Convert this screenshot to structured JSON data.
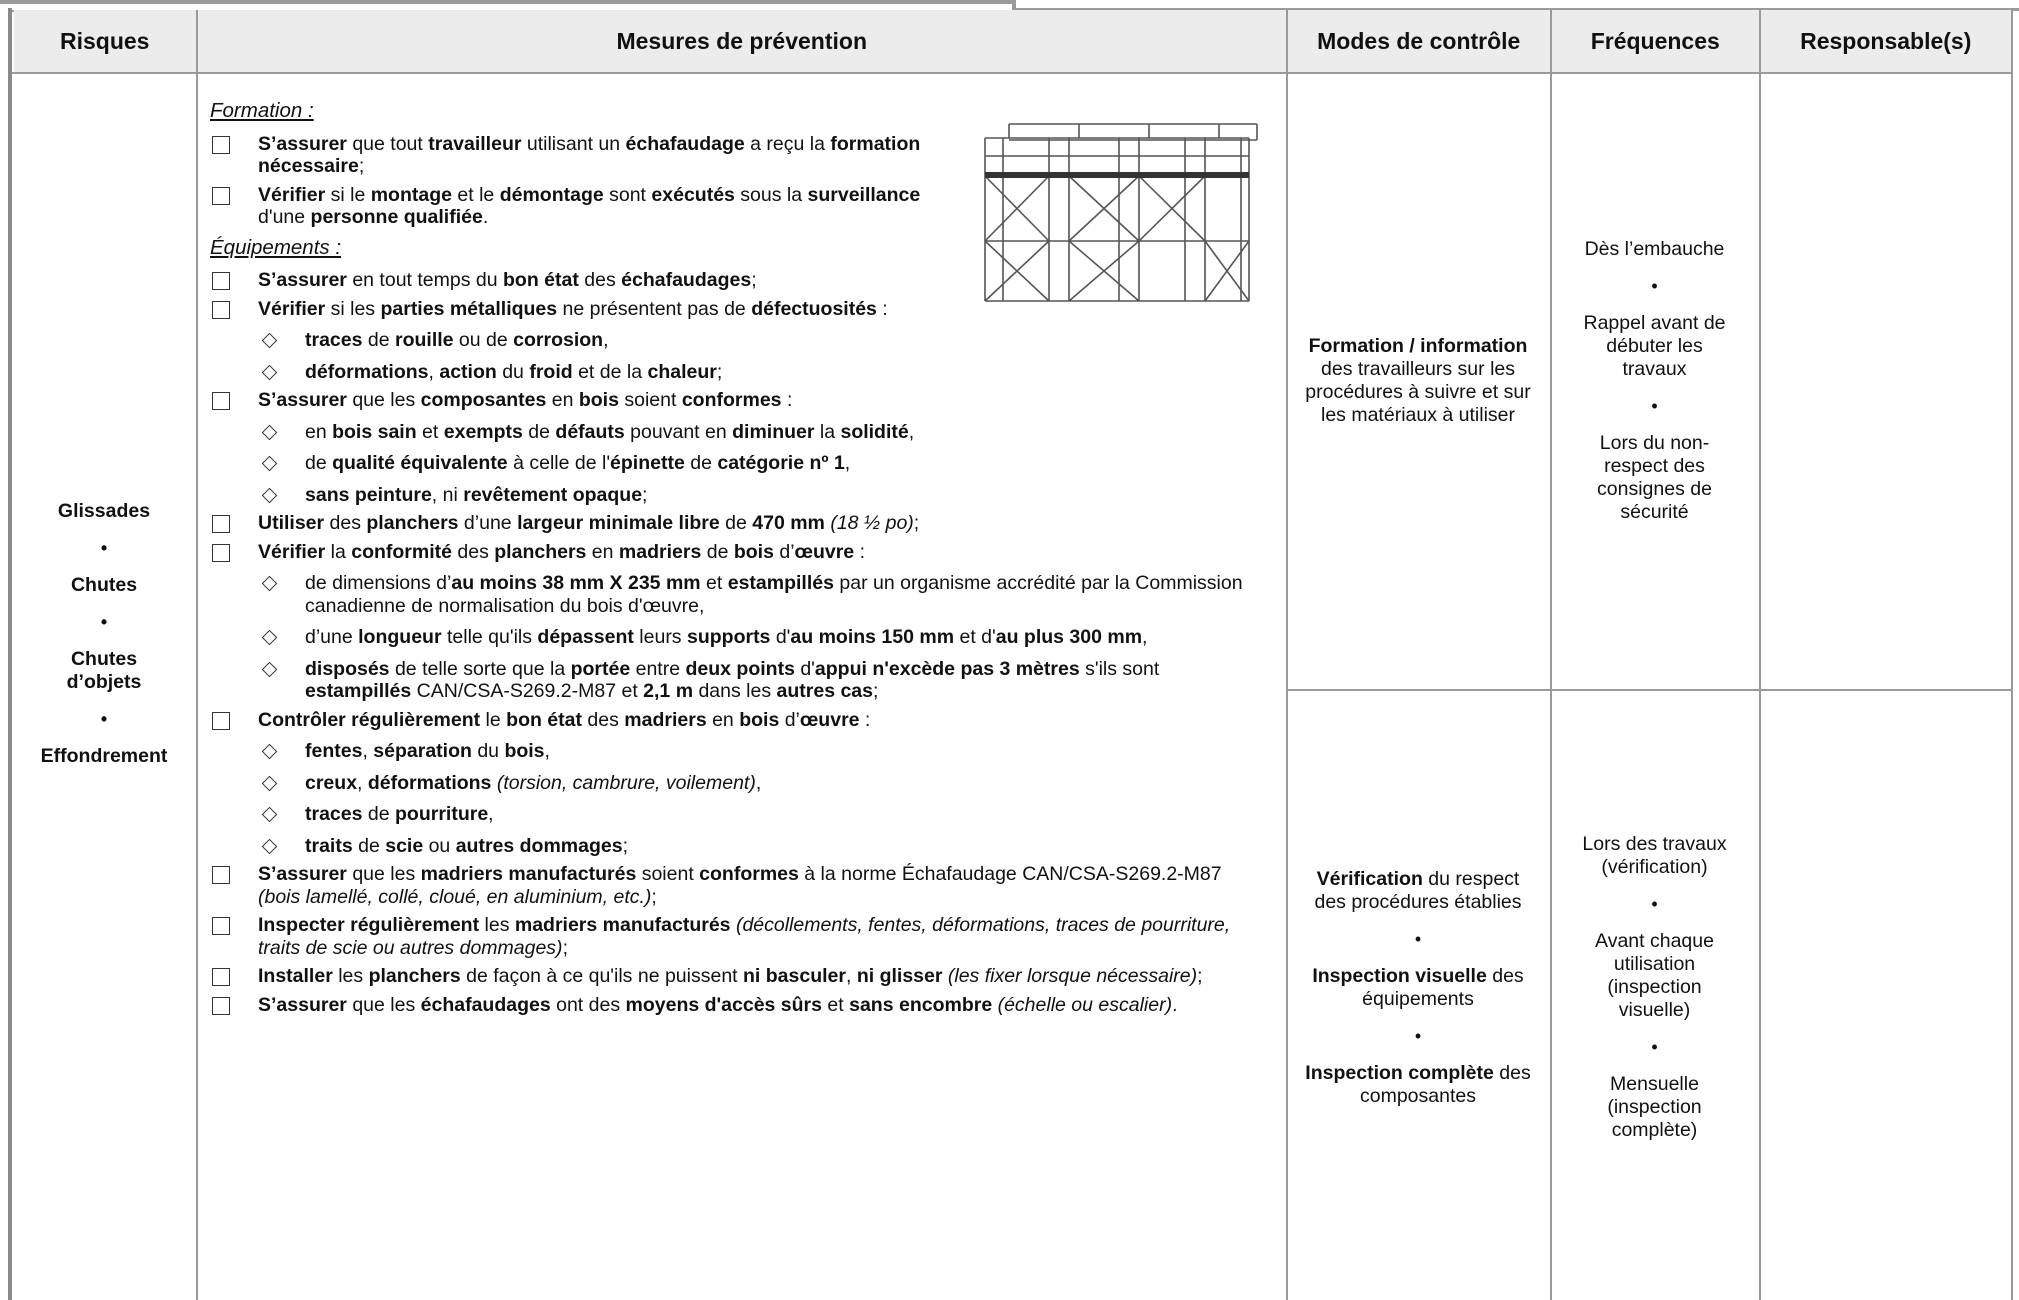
{
  "header": [
    "Risques",
    "Mesures de prévention",
    "Modes de contrôle",
    "Fréquences",
    "Responsable(s)"
  ],
  "risques": [
    "Glissades",
    "Chutes",
    "Chutes d’objets",
    "Effondrement"
  ],
  "mesures": {
    "sections": [
      {
        "heading": "Formation :",
        "items": [
          {
            "runs": [
              {
                "b": "S’assurer"
              },
              {
                "t": " que tout "
              },
              {
                "b": "travailleur"
              },
              {
                "t": " utilisant un "
              },
              {
                "b": "échafaudage"
              },
              {
                "t": " a reçu la "
              },
              {
                "b": "formation nécessaire"
              },
              {
                "t": ";"
              }
            ]
          },
          {
            "runs": [
              {
                "b": "Vérifier"
              },
              {
                "t": " si le "
              },
              {
                "b": "montage"
              },
              {
                "t": " et le "
              },
              {
                "b": "démontage"
              },
              {
                "t": " sont "
              },
              {
                "b": "exécutés"
              },
              {
                "t": " sous la "
              },
              {
                "b": "surveillance"
              },
              {
                "t": " d'une "
              },
              {
                "b": "personne qualifiée"
              },
              {
                "t": "."
              }
            ]
          }
        ]
      },
      {
        "heading": "Équipements :",
        "items": [
          {
            "runs": [
              {
                "b": "S’assurer"
              },
              {
                "t": " en tout temps du "
              },
              {
                "b": "bon état"
              },
              {
                "t": " des "
              },
              {
                "b": "échafaudages"
              },
              {
                "t": ";"
              }
            ]
          },
          {
            "runs": [
              {
                "b": "Vérifier"
              },
              {
                "t": " si les "
              },
              {
                "b": "parties métalliques"
              },
              {
                "t": " ne présentent pas de "
              },
              {
                "b": "défectuosités"
              },
              {
                "t": " :"
              }
            ],
            "sub": [
              [
                {
                  "b": "traces"
                },
                {
                  "t": " de "
                },
                {
                  "b": "rouille"
                },
                {
                  "t": " ou de "
                },
                {
                  "b": "corrosion"
                },
                {
                  "t": ","
                }
              ],
              [
                {
                  "b": "déformations"
                },
                {
                  "t": ", "
                },
                {
                  "b": "action"
                },
                {
                  "t": " du "
                },
                {
                  "b": "froid"
                },
                {
                  "t": " et de la "
                },
                {
                  "b": "chaleur"
                },
                {
                  "t": ";"
                }
              ]
            ]
          },
          {
            "runs": [
              {
                "b": "S’assurer"
              },
              {
                "t": " que les "
              },
              {
                "b": "composantes"
              },
              {
                "t": " en "
              },
              {
                "b": "bois"
              },
              {
                "t": " soient "
              },
              {
                "b": "conformes"
              },
              {
                "t": " :"
              }
            ],
            "sub": [
              [
                {
                  "t": "en "
                },
                {
                  "b": "bois sain"
                },
                {
                  "t": " et "
                },
                {
                  "b": "exempts"
                },
                {
                  "t": " de "
                },
                {
                  "b": "défauts"
                },
                {
                  "t": " pouvant en "
                },
                {
                  "b": "diminuer"
                },
                {
                  "t": " la "
                },
                {
                  "b": "solidité"
                },
                {
                  "t": ","
                }
              ],
              [
                {
                  "t": "de "
                },
                {
                  "b": "qualité équivalente"
                },
                {
                  "t": " à celle de l'"
                },
                {
                  "b": "épinette"
                },
                {
                  "t": " de "
                },
                {
                  "b": "catégorie nº 1"
                },
                {
                  "t": ","
                }
              ],
              [
                {
                  "b": "sans peinture"
                },
                {
                  "t": ", ni "
                },
                {
                  "b": "revêtement opaque"
                },
                {
                  "t": ";"
                }
              ]
            ]
          },
          {
            "runs": [
              {
                "b": "Utiliser"
              },
              {
                "t": " des "
              },
              {
                "b": "planchers"
              },
              {
                "t": " d’une "
              },
              {
                "b": "largeur minimale libre"
              },
              {
                "t": " de "
              },
              {
                "b": "470 mm"
              },
              {
                "i": " (18 ½ po)"
              },
              {
                "t": ";"
              }
            ]
          },
          {
            "runs": [
              {
                "b": "Vérifier"
              },
              {
                "t": " la "
              },
              {
                "b": "conformité"
              },
              {
                "t": " des "
              },
              {
                "b": "planchers"
              },
              {
                "t": " en "
              },
              {
                "b": "madriers"
              },
              {
                "t": " de "
              },
              {
                "b": "bois"
              },
              {
                "t": " d’"
              },
              {
                "b": "œuvre"
              },
              {
                "t": " :"
              }
            ],
            "sub": [
              [
                {
                  "t": "de dimensions d’"
                },
                {
                  "b": "au moins 38 mm X 235 mm"
                },
                {
                  "t": " et "
                },
                {
                  "b": "estampillés"
                },
                {
                  "t": " par un organisme accrédité par la Commission canadienne de normalisation du bois d'œuvre,"
                }
              ],
              [
                {
                  "t": "d’une "
                },
                {
                  "b": "longueur"
                },
                {
                  "t": " telle qu'ils "
                },
                {
                  "b": "dépassent"
                },
                {
                  "t": " leurs "
                },
                {
                  "b": "supports"
                },
                {
                  "t": " d'"
                },
                {
                  "b": "au moins 150 mm"
                },
                {
                  "t": " et d'"
                },
                {
                  "b": "au plus 300 mm"
                },
                {
                  "t": ","
                }
              ],
              [
                {
                  "b": "disposés"
                },
                {
                  "t": " de telle sorte que la "
                },
                {
                  "b": "portée"
                },
                {
                  "t": " entre "
                },
                {
                  "b": "deux points"
                },
                {
                  "t": " d'"
                },
                {
                  "b": "appui n'excède pas 3 mètres"
                },
                {
                  "t": " s'ils sont "
                },
                {
                  "b": "estampillés"
                },
                {
                  "t": " CAN/CSA-S269.2-M87 et "
                },
                {
                  "b": "2,1 m"
                },
                {
                  "t": " dans les "
                },
                {
                  "b": "autres cas"
                },
                {
                  "t": ";"
                }
              ]
            ]
          },
          {
            "runs": [
              {
                "b": "Contrôler régulièrement"
              },
              {
                "t": " le "
              },
              {
                "b": "bon état"
              },
              {
                "t": " des "
              },
              {
                "b": "madriers"
              },
              {
                "t": " en "
              },
              {
                "b": "bois"
              },
              {
                "t": " d’"
              },
              {
                "b": "œuvre"
              },
              {
                "t": " :"
              }
            ],
            "sub": [
              [
                {
                  "b": "fentes"
                },
                {
                  "t": ", "
                },
                {
                  "b": "séparation"
                },
                {
                  "t": " du "
                },
                {
                  "b": "bois"
                },
                {
                  "t": ","
                }
              ],
              [
                {
                  "b": "creux"
                },
                {
                  "t": ", "
                },
                {
                  "b": "déformations"
                },
                {
                  "i": " (torsion, cambrure, voilement)"
                },
                {
                  "t": ","
                }
              ],
              [
                {
                  "b": "traces"
                },
                {
                  "t": " de "
                },
                {
                  "b": "pourriture"
                },
                {
                  "t": ","
                }
              ],
              [
                {
                  "b": "traits"
                },
                {
                  "t": " de "
                },
                {
                  "b": "scie"
                },
                {
                  "t": " ou "
                },
                {
                  "b": "autres dommages"
                },
                {
                  "t": ";"
                }
              ]
            ]
          },
          {
            "runs": [
              {
                "b": "S’assurer"
              },
              {
                "t": " que les "
              },
              {
                "b": "madriers manufacturés"
              },
              {
                "t": " soient "
              },
              {
                "b": "conformes"
              },
              {
                "t": " à la norme Échafaudage CAN/CSA-S269.2-M87"
              },
              {
                "i": " (bois lamellé, collé, cloué, en aluminium, etc.)"
              },
              {
                "t": ";"
              }
            ]
          },
          {
            "runs": [
              {
                "b": "Inspecter régulièrement"
              },
              {
                "t": " les "
              },
              {
                "b": "madriers manufacturés"
              },
              {
                "i": " (décollements, fentes, déformations, traces de pourriture, traits de scie ou autres dommages)"
              },
              {
                "t": ";"
              }
            ]
          },
          {
            "runs": [
              {
                "b": "Installer"
              },
              {
                "t": " les "
              },
              {
                "b": "planchers"
              },
              {
                "t": " de façon à ce qu'ils ne puissent "
              },
              {
                "b": "ni basculer"
              },
              {
                "t": ", "
              },
              {
                "b": "ni glisser"
              },
              {
                "i": " (les fixer lorsque nécessaire)"
              },
              {
                "t": ";"
              }
            ]
          },
          {
            "runs": [
              {
                "b": "S’assurer"
              },
              {
                "t": " que les "
              },
              {
                "b": "échafaudages"
              },
              {
                "t": " ont des "
              },
              {
                "b": "moyens d'accès sûrs"
              },
              {
                "t": " et "
              },
              {
                "b": "sans encombre"
              },
              {
                "i": " (échelle ou escalier)"
              },
              {
                "t": "."
              }
            ]
          }
        ]
      }
    ]
  },
  "controle": [
    [
      [
        {
          "b": "Formation / information"
        },
        {
          "t": " des travailleurs sur les procédures à suivre et sur les matériaux à utiliser"
        }
      ]
    ],
    [
      [
        {
          "b": "Vérification"
        },
        {
          "t": " du respect des procédures établies"
        }
      ],
      [
        {
          "b": "Inspection visuelle"
        },
        {
          "t": " des équipements"
        }
      ],
      [
        {
          "b": "Inspection complète"
        },
        {
          "t": " des composantes"
        }
      ]
    ]
  ],
  "frequences": [
    [
      "Dès l’embauche",
      "Rappel avant de débuter les travaux",
      "Lors du non-respect des consignes de sécurité"
    ],
    [
      "Lors des travaux (vérification)",
      "Avant chaque utilisation (inspection visuelle)",
      "Mensuelle (inspection complète)"
    ]
  ]
}
